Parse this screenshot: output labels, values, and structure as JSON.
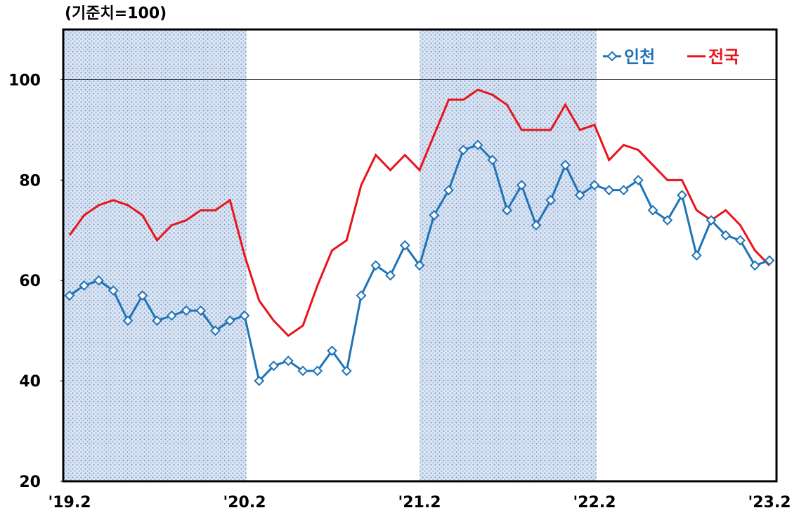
{
  "chart_data": {
    "type": "line",
    "unit_label": "(기준치=100)",
    "categories": [
      "'19.2",
      null,
      null,
      null,
      null,
      null,
      null,
      null,
      null,
      null,
      null,
      null,
      "'20.2",
      null,
      null,
      null,
      null,
      null,
      null,
      null,
      null,
      null,
      null,
      null,
      "'21.2",
      null,
      null,
      null,
      null,
      null,
      null,
      null,
      null,
      null,
      null,
      null,
      "'22.2",
      null,
      null,
      null,
      null,
      null,
      null,
      null,
      null,
      null,
      null,
      null,
      "'23.2"
    ],
    "series": [
      {
        "name": "인천",
        "color": "#1f73b7",
        "marker": "diamond",
        "values": [
          57,
          59,
          60,
          58,
          52,
          57,
          52,
          53,
          54,
          54,
          50,
          52,
          53,
          40,
          43,
          44,
          42,
          42,
          46,
          42,
          57,
          63,
          61,
          67,
          63,
          73,
          78,
          86,
          87,
          84,
          74,
          79,
          71,
          76,
          83,
          77,
          79,
          78,
          78,
          80,
          74,
          72,
          77,
          65,
          72,
          69,
          68,
          63,
          64
        ]
      },
      {
        "name": "전국",
        "color": "#e8141b",
        "values": [
          69,
          73,
          75,
          76,
          75,
          73,
          68,
          71,
          72,
          74,
          74,
          76,
          65,
          56,
          52,
          49,
          51,
          59,
          66,
          68,
          79,
          85,
          82,
          85,
          82,
          89,
          96,
          96,
          98,
          97,
          95,
          90,
          90,
          90,
          95,
          90,
          91,
          84,
          87,
          86,
          83,
          80,
          80,
          74,
          72,
          74,
          71,
          66,
          63
        ]
      }
    ],
    "ylim": [
      20,
      110
    ],
    "yticks": [
      20,
      40,
      60,
      80,
      100
    ],
    "reference_line": 100,
    "shaded": [
      {
        "from": 0,
        "to": 12
      },
      {
        "from": 24,
        "to": 36
      }
    ],
    "legend": "top-right",
    "grid": false
  }
}
